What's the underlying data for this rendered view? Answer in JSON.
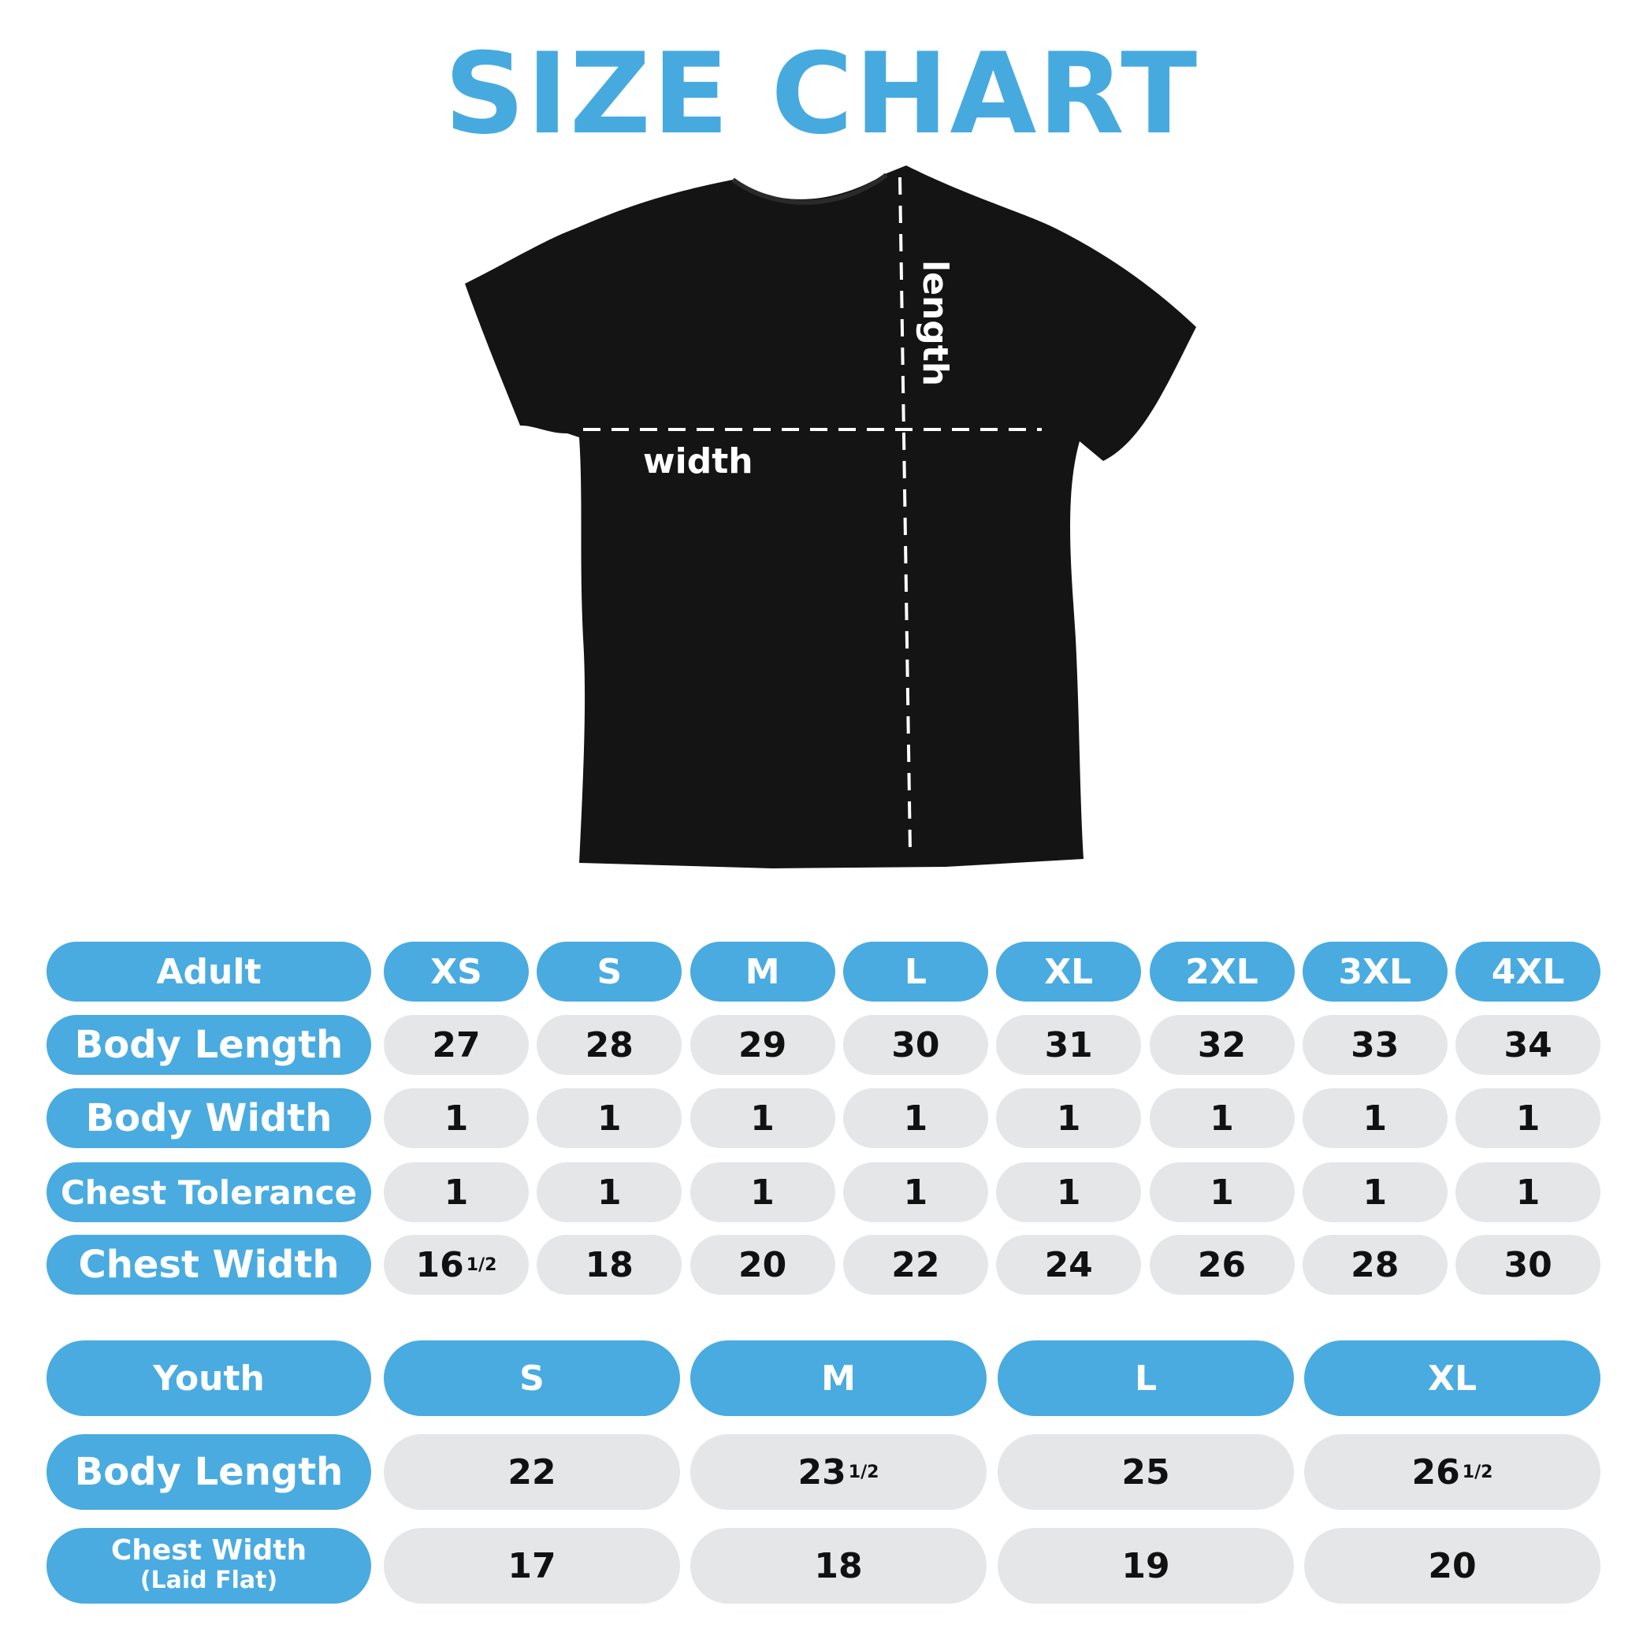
{
  "title": "SIZE CHART",
  "colors": {
    "accent": "#49abe0",
    "cell": "#e5e6e7",
    "shirt": "#111111"
  },
  "shirt": {
    "length_label": "length",
    "width_label": "width"
  },
  "adult": {
    "header": "Adult",
    "sizes": [
      "XS",
      "S",
      "M",
      "L",
      "XL",
      "2XL",
      "3XL",
      "4XL"
    ],
    "rows": [
      {
        "label": "Body Length",
        "values": [
          {
            "v": "27"
          },
          {
            "v": "28"
          },
          {
            "v": "29"
          },
          {
            "v": "30"
          },
          {
            "v": "31"
          },
          {
            "v": "32"
          },
          {
            "v": "33"
          },
          {
            "v": "34"
          }
        ]
      },
      {
        "label": "Body Width",
        "values": [
          {
            "v": "1"
          },
          {
            "v": "1"
          },
          {
            "v": "1"
          },
          {
            "v": "1"
          },
          {
            "v": "1"
          },
          {
            "v": "1"
          },
          {
            "v": "1"
          },
          {
            "v": "1"
          }
        ]
      },
      {
        "label": "Chest Tolerance",
        "values": [
          {
            "v": "1"
          },
          {
            "v": "1"
          },
          {
            "v": "1"
          },
          {
            "v": "1"
          },
          {
            "v": "1"
          },
          {
            "v": "1"
          },
          {
            "v": "1"
          },
          {
            "v": "1"
          }
        ]
      },
      {
        "label": "Chest Width",
        "values": [
          {
            "v": "16",
            "f": "1/2"
          },
          {
            "v": "18"
          },
          {
            "v": "20"
          },
          {
            "v": "22"
          },
          {
            "v": "24"
          },
          {
            "v": "26"
          },
          {
            "v": "28"
          },
          {
            "v": "30"
          }
        ]
      }
    ]
  },
  "youth": {
    "header": "Youth",
    "sizes": [
      "S",
      "M",
      "L",
      "XL"
    ],
    "rows": [
      {
        "label": "Body Length",
        "values": [
          {
            "v": "22"
          },
          {
            "v": "23",
            "f": "1/2"
          },
          {
            "v": "25"
          },
          {
            "v": "26",
            "f": "1/2"
          }
        ]
      },
      {
        "label": "Chest Width",
        "sublabel": "(Laid Flat)",
        "values": [
          {
            "v": "17"
          },
          {
            "v": "18"
          },
          {
            "v": "19"
          },
          {
            "v": "20"
          }
        ]
      }
    ]
  }
}
